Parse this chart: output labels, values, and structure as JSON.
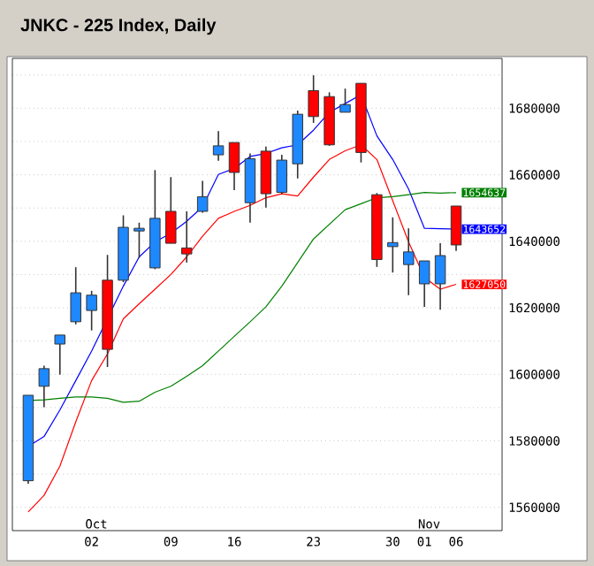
{
  "chart_data": {
    "type": "candlestick",
    "title": "JNKC - 225 Index, Daily",
    "categories": [
      null,
      null,
      null,
      null,
      "02",
      null,
      null,
      null,
      null,
      "09",
      null,
      null,
      null,
      "16",
      null,
      null,
      null,
      null,
      "23",
      null,
      null,
      null,
      null,
      "30",
      null,
      "01",
      null,
      "06"
    ],
    "ohlc": [
      [
        1568000,
        1593700,
        1567100,
        1593700
      ],
      [
        1596400,
        1602600,
        1590100,
        1601700
      ],
      [
        1609100,
        1611800,
        1599900,
        1611800
      ],
      [
        1615800,
        1632200,
        1615000,
        1624500
      ],
      [
        1619200,
        1625100,
        1613200,
        1623800
      ],
      [
        1628300,
        1635900,
        1602200,
        1607500
      ],
      [
        1628300,
        1647800,
        1627700,
        1644200
      ],
      [
        1643100,
        1645600,
        1635000,
        1643900
      ],
      [
        1632000,
        1661400,
        1631600,
        1646900
      ],
      [
        1649000,
        1659300,
        1639400,
        1639400
      ],
      [
        1638000,
        1649000,
        1633600,
        1636200
      ],
      [
        1649000,
        1658200,
        1648600,
        1653400
      ],
      [
        1666000,
        1673100,
        1664200,
        1668700
      ],
      [
        1669700,
        1669700,
        1655400,
        1660700
      ],
      [
        1651600,
        1666400,
        1645600,
        1664800
      ],
      [
        1667100,
        1668500,
        1650100,
        1654300
      ],
      [
        1654700,
        1666000,
        1654300,
        1664400
      ],
      [
        1663300,
        1679300,
        1658900,
        1678200
      ],
      [
        1685300,
        1689900,
        1675600,
        1677500
      ],
      [
        1683500,
        1684800,
        1668700,
        1669000
      ],
      [
        1678800,
        1685900,
        1678800,
        1681100
      ],
      [
        1687500,
        1687500,
        1663700,
        1666700
      ],
      [
        1654000,
        1654500,
        1632300,
        1634500
      ],
      [
        1638400,
        1647200,
        1630600,
        1639600
      ],
      [
        1633000,
        1643900,
        1623800,
        1636800
      ],
      [
        1627200,
        1634100,
        1620300,
        1634100
      ],
      [
        1627200,
        1639400,
        1619400,
        1635700
      ],
      [
        1650600,
        1650600,
        1637100,
        1638900
      ]
    ],
    "colors": [
      "#1e88ff",
      "#1e88ff",
      "#1e88ff",
      "#1e88ff",
      "#1e88ff",
      "#ff0000",
      "#1e88ff",
      "#1e88ff",
      "#1e88ff",
      "#ff0000",
      "#ff0000",
      "#1e88ff",
      "#1e88ff",
      "#ff0000",
      "#1e88ff",
      "#ff0000",
      "#1e88ff",
      "#1e88ff",
      "#ff0000",
      "#ff0000",
      "#1e88ff",
      "#ff0000",
      "#ff0000",
      "#1e88ff",
      "#1e88ff",
      "#1e88ff",
      "#1e88ff",
      "#ff0000"
    ],
    "series": [
      {
        "type": "line",
        "color": "#0000ff",
        "values": [
          1578300,
          1581300,
          1589300,
          1598100,
          1607000,
          null,
          1626500,
          1635300,
          1639800,
          1642400,
          1646000,
          1650400,
          1660100,
          1661900,
          1665500,
          1666400,
          1668100,
          1669000,
          1673400,
          1678800,
          1681400,
          1684100,
          1671700,
          1664600,
          1655700,
          1643900,
          1643800,
          1643652
        ],
        "value_labels": [
          null,
          null,
          null,
          null,
          null,
          null,
          null,
          null,
          null,
          null,
          null,
          null,
          null,
          null,
          null,
          null,
          null,
          null,
          null,
          null,
          null,
          null,
          null,
          null,
          null,
          null,
          null,
          "1643652"
        ]
      },
      {
        "type": "line",
        "color": "#ff0000",
        "values": [
          1558600,
          1563600,
          1572400,
          1585700,
          1598100,
          1606100,
          1616700,
          1621200,
          1625600,
          1630000,
          1635300,
          1641500,
          1646900,
          1649000,
          1650800,
          1653100,
          1654300,
          1653600,
          1659300,
          1664600,
          1667200,
          1669000,
          1664600,
          1652200,
          1639800,
          1629100,
          1625600,
          1627050
        ],
        "value_labels": [
          null,
          null,
          null,
          null,
          null,
          null,
          null,
          null,
          null,
          null,
          null,
          null,
          null,
          null,
          null,
          null,
          null,
          null,
          null,
          null,
          null,
          null,
          null,
          null,
          null,
          null,
          null,
          "1627050"
        ]
      },
      {
        "type": "line",
        "color": "#008000",
        "values": [
          1592100,
          1592300,
          1592800,
          1593200,
          1593200,
          1592800,
          1591600,
          1591900,
          1594600,
          1596400,
          1599400,
          1602600,
          1607000,
          1611400,
          1615800,
          1620300,
          1626500,
          1633600,
          1640700,
          1645100,
          1649500,
          1651300,
          1653100,
          1653400,
          1654000,
          1654700,
          1654500,
          1654637
        ],
        "value_labels": [
          null,
          null,
          null,
          null,
          null,
          null,
          null,
          null,
          null,
          null,
          null,
          null,
          null,
          null,
          null,
          null,
          null,
          null,
          null,
          null,
          null,
          null,
          null,
          null,
          null,
          null,
          null,
          "1654637"
        ]
      }
    ],
    "ylim": [
      1553000,
      1695000
    ],
    "yticks": [
      1560000,
      {
        "value": 1570000,
        "label": null
      },
      1580000,
      {
        "value": 1590000,
        "label": null
      },
      1600000,
      {
        "value": 1610000,
        "label": null
      },
      1620000,
      {
        "value": 1630000,
        "label": null
      },
      1640000,
      {
        "value": 1650000,
        "label": null
      },
      1660000,
      {
        "value": 1670000,
        "label": null
      },
      1680000,
      {
        "value": 1690000,
        "label": null
      }
    ],
    "grid": "y",
    "annotations": [
      "Oct",
      "Nov"
    ]
  }
}
